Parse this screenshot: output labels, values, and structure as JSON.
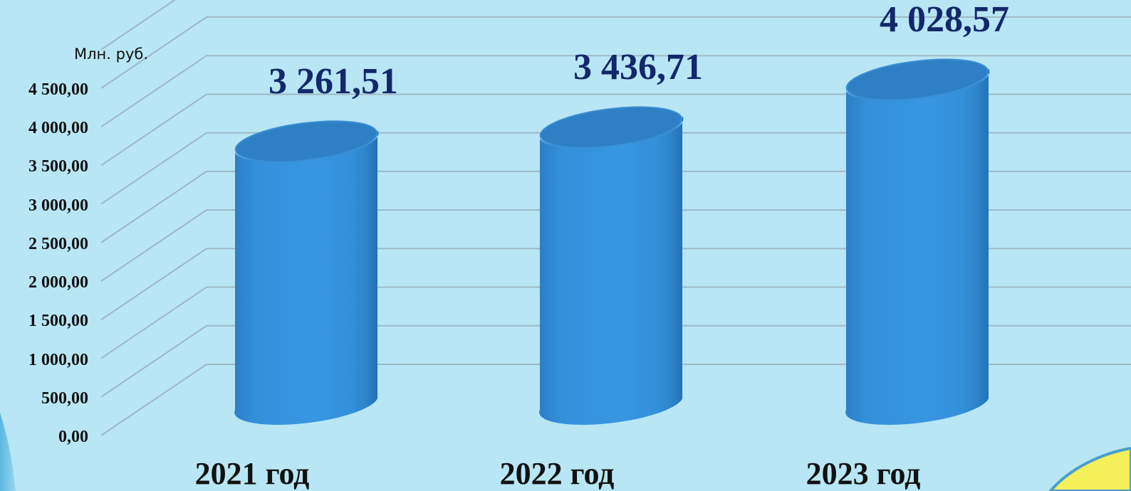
{
  "chart_data": {
    "type": "bar",
    "style": "3d-cylinder",
    "unit_label": "Млн. руб.",
    "categories": [
      "2021 год",
      "2022 год",
      "2023 год"
    ],
    "values": [
      3261.51,
      3436.71,
      4028.57
    ],
    "value_labels": [
      "3 261,51",
      "3 436,71",
      "4 028,57"
    ],
    "y_tick_labels": [
      "0,00",
      "500,00",
      "1 000,00",
      "1 500,00",
      "2 000,00",
      "2 500,00",
      "3 000,00",
      "3 500,00",
      "4 000,00",
      "4 500,00"
    ],
    "ylim": [
      0,
      4500
    ],
    "grid": true,
    "colors": {
      "background": "#b8e6f5",
      "bar": "#3592dc",
      "bar_dark": "#2a78bd",
      "bar_top": "#2e7fc4",
      "value_label": "#13286b",
      "gridline": "#9fb8c4"
    }
  }
}
